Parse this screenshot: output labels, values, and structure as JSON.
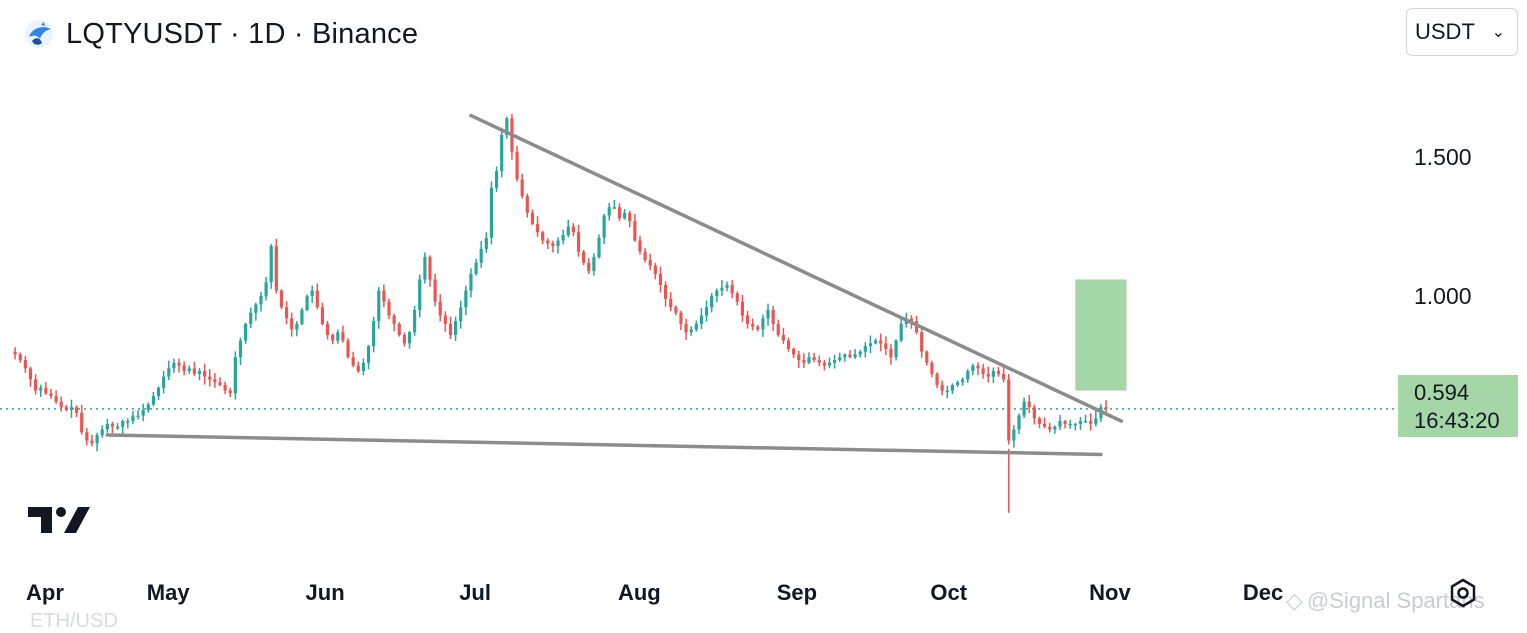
{
  "header": {
    "title": "LQTYUSDT · 1D · Binance"
  },
  "currency_select": {
    "value": "USDT"
  },
  "price_label": {
    "price": "0.594",
    "countdown": "16:43:20"
  },
  "watermark": {
    "text": "@Signal Spartans"
  },
  "footer_ghost": {
    "text": "ETH/USD"
  },
  "icons": [
    "exchange-logo-icon",
    "tradingview-logo-icon",
    "settings-gear-icon",
    "chevron-down-icon",
    "binance-diamond-icon"
  ],
  "colors": {
    "up": "#26a69a",
    "down": "#ef5350",
    "trendline": "#8c8c8c",
    "target_zone": "#a5d6a7",
    "price_line": "#26a69a"
  },
  "chart_data": {
    "type": "candlestick",
    "title": "LQTYUSDT · 1D · Binance",
    "y_ticks": [
      {
        "label": "1.500",
        "value": 1.5
      },
      {
        "label": "1.000",
        "value": 1.0
      }
    ],
    "x_ticks": [
      {
        "label": "Apr",
        "day": 0
      },
      {
        "label": "May",
        "day": 30
      },
      {
        "label": "Jun",
        "day": 61
      },
      {
        "label": "Jul",
        "day": 91
      },
      {
        "label": "Aug",
        "day": 122
      },
      {
        "label": "Sep",
        "day": 153
      },
      {
        "label": "Oct",
        "day": 183
      },
      {
        "label": "Nov",
        "day": 214
      },
      {
        "label": "Dec",
        "day": 244
      }
    ],
    "ylim": [
      0.05,
      1.85
    ],
    "xlim": [
      -1,
      270
    ],
    "last_price": 0.594,
    "closes": [
      0.79,
      0.77,
      0.74,
      0.7,
      0.66,
      0.67,
      0.65,
      0.64,
      0.62,
      0.6,
      0.59,
      0.6,
      0.58,
      0.51,
      0.48,
      0.47,
      0.5,
      0.52,
      0.54,
      0.53,
      0.53,
      0.55,
      0.55,
      0.57,
      0.57,
      0.59,
      0.61,
      0.64,
      0.67,
      0.71,
      0.74,
      0.76,
      0.75,
      0.73,
      0.74,
      0.72,
      0.73,
      0.71,
      0.7,
      0.69,
      0.68,
      0.66,
      0.65,
      0.78,
      0.84,
      0.9,
      0.94,
      0.97,
      1.0,
      1.05,
      1.18,
      1.02,
      0.96,
      0.92,
      0.88,
      0.9,
      0.95,
      1.0,
      1.02,
      0.96,
      0.9,
      0.86,
      0.84,
      0.87,
      0.84,
      0.78,
      0.75,
      0.73,
      0.76,
      0.82,
      0.91,
      1.02,
      0.98,
      0.93,
      0.9,
      0.86,
      0.83,
      0.87,
      0.95,
      1.06,
      1.14,
      1.06,
      0.98,
      0.93,
      0.9,
      0.86,
      0.91,
      0.96,
      1.02,
      1.08,
      1.12,
      1.17,
      1.21,
      1.39,
      1.45,
      1.58,
      1.64,
      1.52,
      1.42,
      1.36,
      1.3,
      1.26,
      1.23,
      1.2,
      1.19,
      1.18,
      1.2,
      1.22,
      1.25,
      1.23,
      1.16,
      1.12,
      1.09,
      1.14,
      1.21,
      1.29,
      1.32,
      1.32,
      1.28,
      1.3,
      1.27,
      1.2,
      1.16,
      1.13,
      1.11,
      1.08,
      1.04,
      0.99,
      0.96,
      0.94,
      0.9,
      0.87,
      0.88,
      0.9,
      0.93,
      0.96,
      1.0,
      1.02,
      1.03,
      1.04,
      1.01,
      0.98,
      0.93,
      0.9,
      0.89,
      0.88,
      0.92,
      0.95,
      0.9,
      0.86,
      0.84,
      0.81,
      0.79,
      0.77,
      0.76,
      0.78,
      0.77,
      0.76,
      0.75,
      0.76,
      0.77,
      0.78,
      0.79,
      0.78,
      0.79,
      0.8,
      0.82,
      0.83,
      0.84,
      0.83,
      0.81,
      0.78,
      0.84,
      0.9,
      0.92,
      0.91,
      0.87,
      0.8,
      0.76,
      0.72,
      0.68,
      0.66,
      0.66,
      0.68,
      0.69,
      0.7,
      0.73,
      0.75,
      0.74,
      0.72,
      0.71,
      0.73,
      0.72,
      0.7,
      0.48,
      0.52,
      0.57,
      0.62,
      0.6,
      0.56,
      0.54,
      0.53,
      0.52,
      0.53,
      0.55,
      0.54,
      0.54,
      0.54,
      0.55,
      0.55,
      0.54,
      0.56,
      0.6,
      0.594
    ],
    "trendlines": [
      {
        "name": "descending resistance",
        "from": {
          "day": 89,
          "price": 1.65
        },
        "to": {
          "day": 216,
          "price": 0.55
        }
      },
      {
        "name": "horizontal support",
        "from": {
          "day": 18,
          "price": 0.5
        },
        "to": {
          "day": 212,
          "price": 0.43
        }
      }
    ],
    "target_zone": {
      "day_start": 207,
      "day_end": 217,
      "price_low": 0.66,
      "price_high": 1.06
    }
  }
}
